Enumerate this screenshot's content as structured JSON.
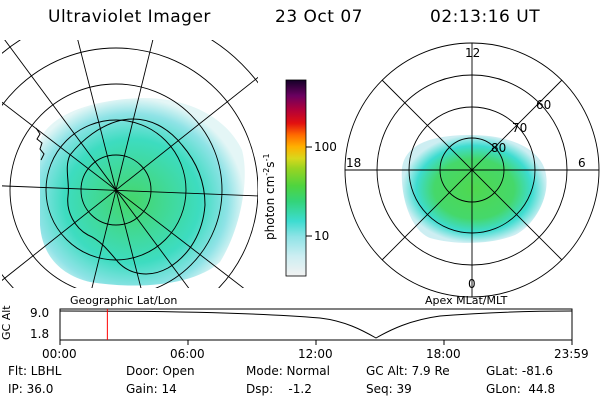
{
  "header": {
    "instrument": "Ultraviolet Imager",
    "date": "23 Oct 07",
    "time": "02:13:16 UT"
  },
  "colorbar": {
    "unit_label": "photon cm",
    "unit_exp1": "-2",
    "unit_s": "s",
    "unit_exp2": "-1",
    "ticks": [
      "100",
      "10"
    ]
  },
  "left_map": {
    "caption": "Geographic Lat/Lon"
  },
  "right_map": {
    "caption": "Apex MLat/MLT",
    "mlt_labels": [
      "12",
      "6",
      "0",
      "18"
    ],
    "lat_labels": [
      "60",
      "70",
      "80"
    ]
  },
  "timeline": {
    "axis_label": "GC Alt",
    "y_max": "9.0",
    "y_min": "1.8",
    "x_ticks": [
      "00:00",
      "06:00",
      "12:00",
      "18:00",
      "23:59"
    ],
    "marker_hours": 2.22,
    "colors": {
      "marker": "#ff0000"
    }
  },
  "status": {
    "flt": "Flt: LBHL",
    "ip": "IP: 36.0",
    "door": "Door: Open",
    "gain": "Gain: 14",
    "mode": "Mode: Normal",
    "dsp": "Dsp:    -1.2",
    "gcalt": "GC Alt: 7.9 Re",
    "seq": "Seq: 39",
    "glat": "GLat: -81.6",
    "glon": "GLon:  44.8"
  }
}
